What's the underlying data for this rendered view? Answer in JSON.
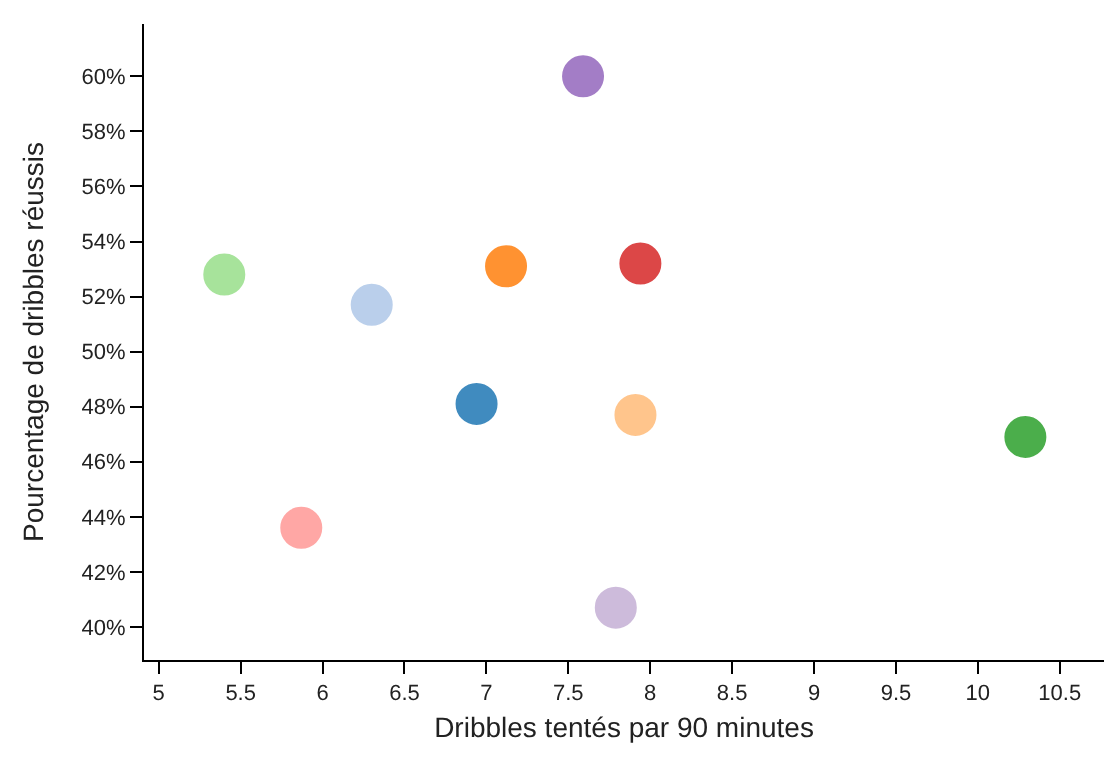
{
  "chart_data": {
    "type": "scatter",
    "xlabel": "Dribbles tentés par 90 minutes",
    "ylabel": "Pourcentage de dribbles réussis",
    "x": [
      7.59,
      5.4,
      6.3,
      7.12,
      7.94,
      6.94,
      7.91,
      10.29,
      5.87,
      7.79
    ],
    "values": [
      60.0,
      52.8,
      51.7,
      53.1,
      53.2,
      48.1,
      47.7,
      46.9,
      43.6,
      40.7
    ],
    "colors": [
      "#9467bd",
      "#98df8a",
      "#aec7e8",
      "#ff7f0e",
      "#d62728",
      "#1f77b4",
      "#ffbb78",
      "#2ca02c",
      "#ff9896",
      "#c5b0d5"
    ],
    "marker": "circle",
    "xlim": [
      4.91,
      10.77
    ],
    "ylim": [
      38.8,
      61.9
    ],
    "xticks": [
      5,
      5.5,
      6,
      6.5,
      7,
      7.5,
      8,
      8.5,
      9,
      9.5,
      10,
      10.5
    ],
    "yticks": [
      {
        "value": 40,
        "label": "40%"
      },
      {
        "value": 42,
        "label": "42%"
      },
      {
        "value": 44,
        "label": "44%"
      },
      {
        "value": 46,
        "label": "46%"
      },
      {
        "value": 48,
        "label": "48%"
      },
      {
        "value": 50,
        "label": "50%"
      },
      {
        "value": 52,
        "label": "52%"
      },
      {
        "value": 54,
        "label": "54%"
      },
      {
        "value": 56,
        "label": "56%"
      },
      {
        "value": 58,
        "label": "58%"
      },
      {
        "value": 60,
        "label": "60%"
      }
    ],
    "legend": false
  }
}
